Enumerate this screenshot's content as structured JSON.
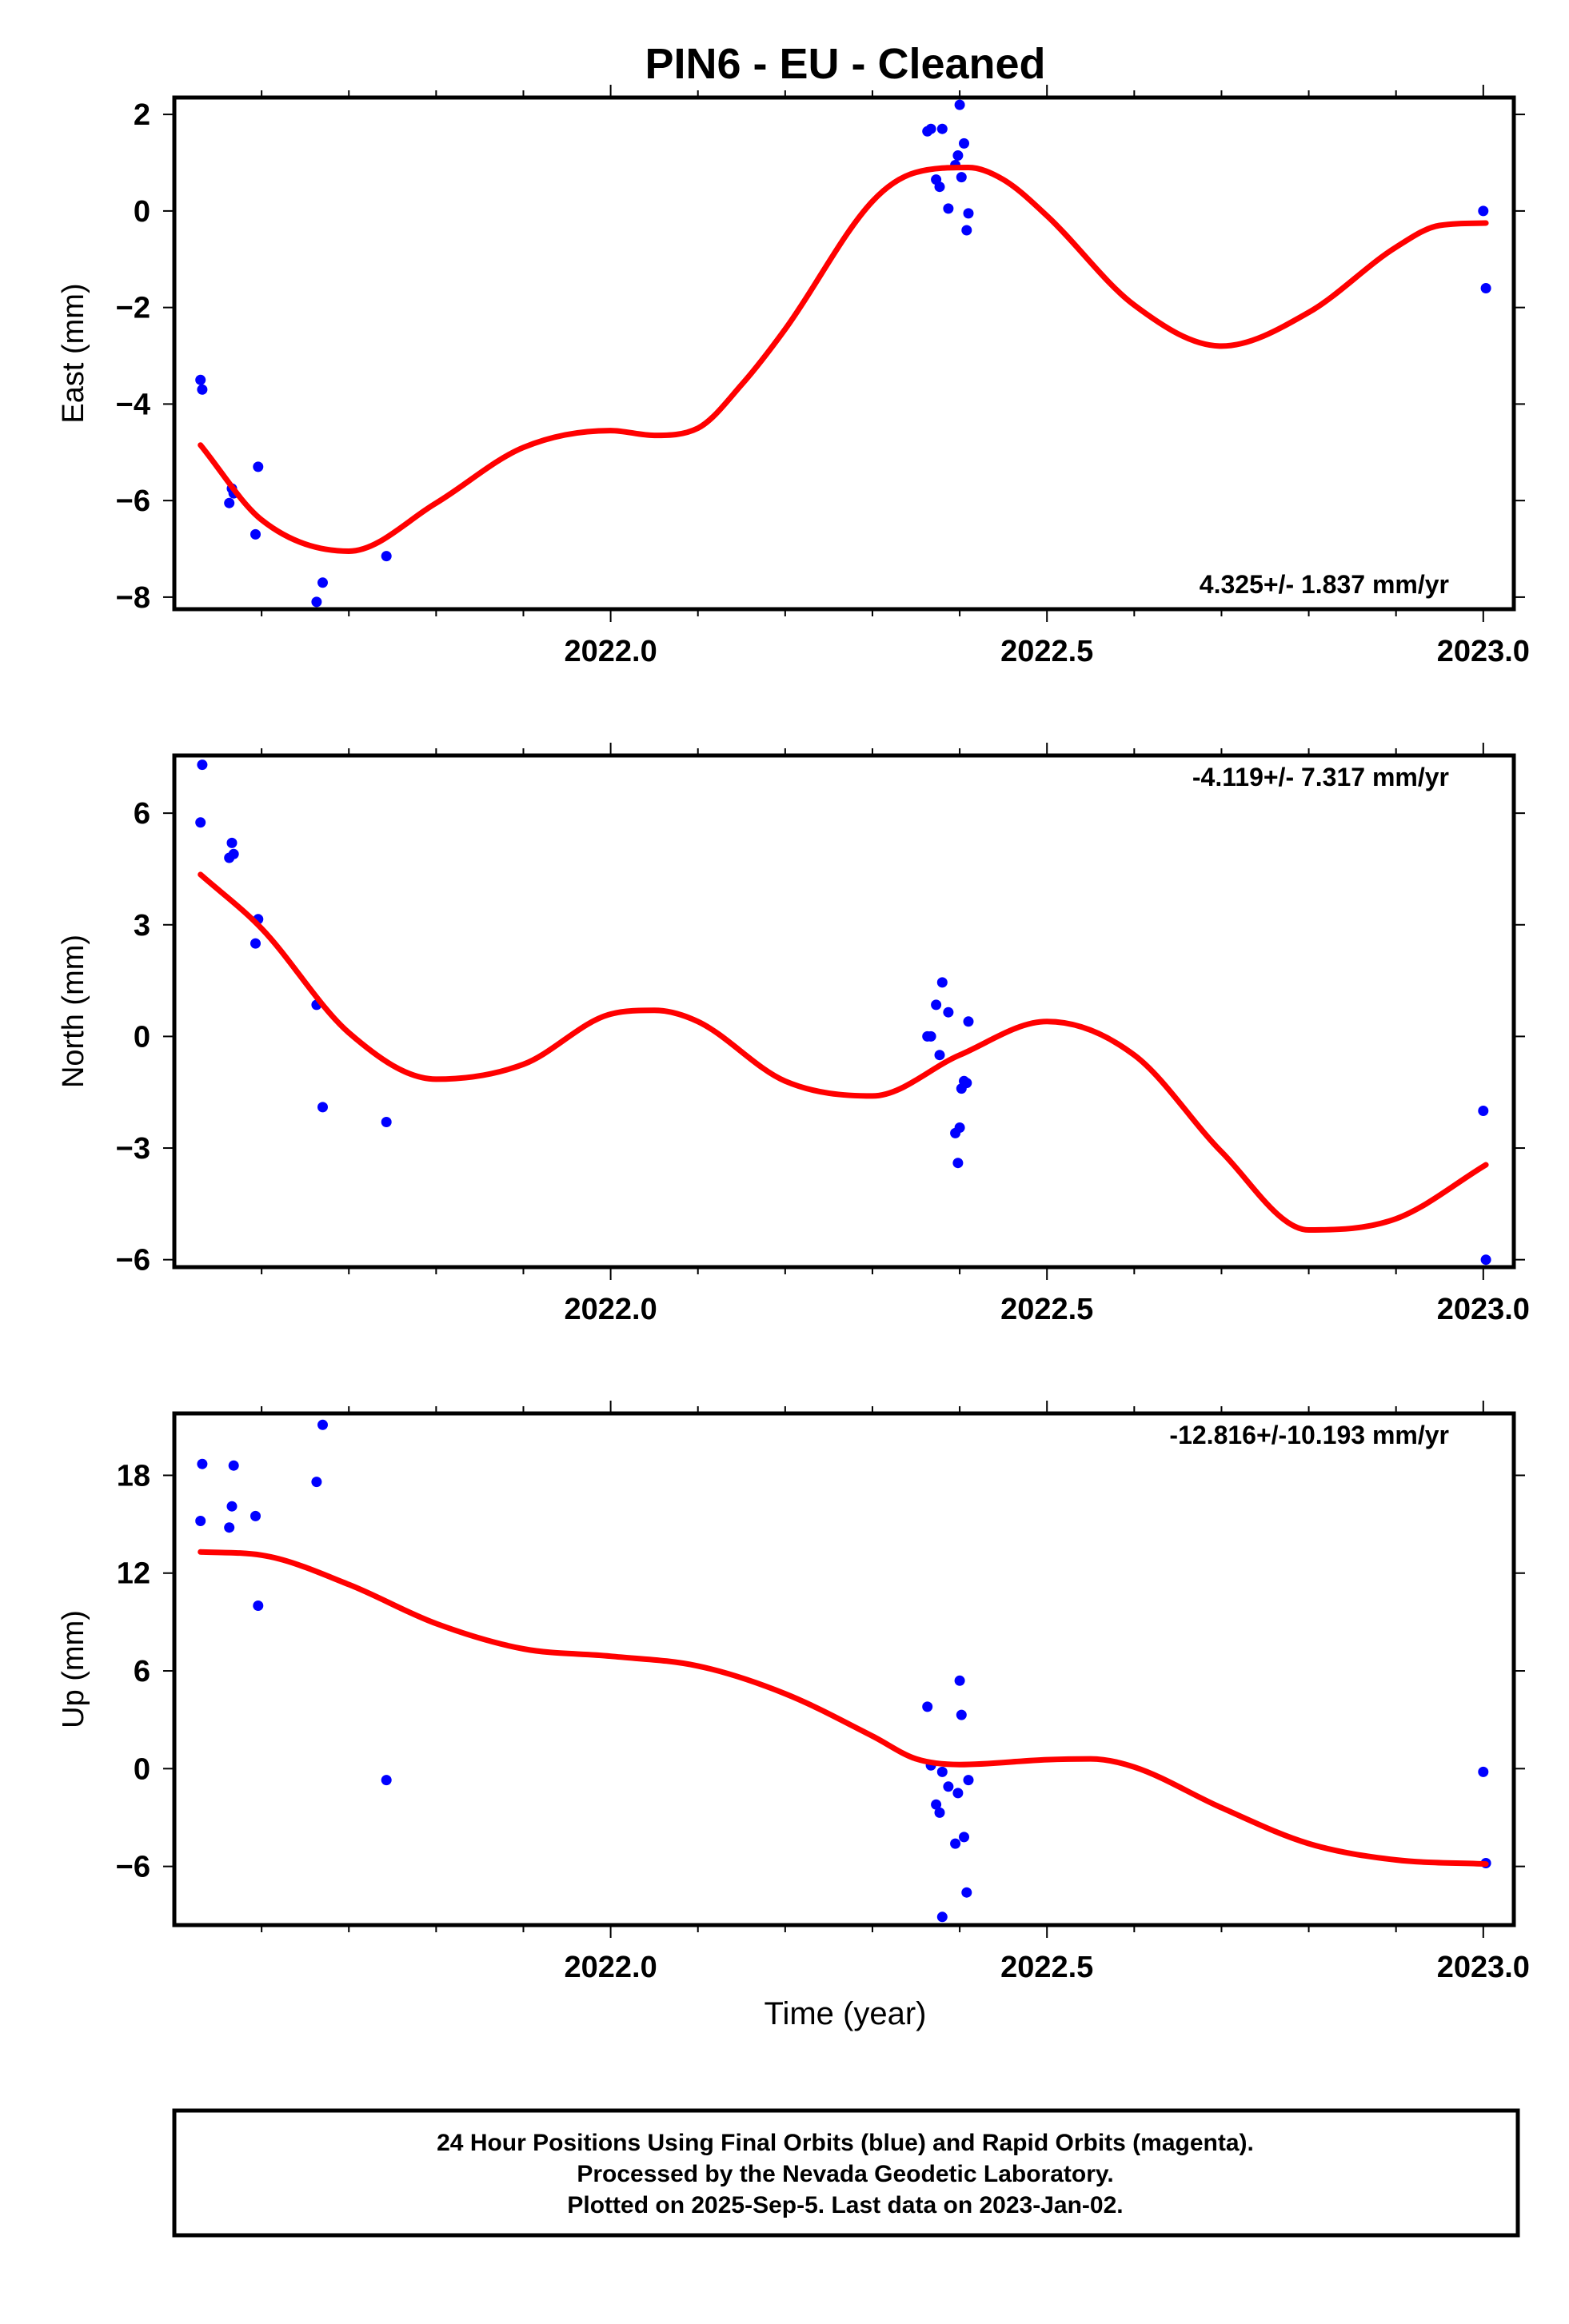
{
  "title": "PIN6  - EU - Cleaned",
  "xlabel": "Time (year)",
  "colors": {
    "final_orbits": "#0000ff",
    "model": "#ff0000",
    "axis": "#000000"
  },
  "footer": {
    "line1": "24 Hour Positions Using Final Orbits (blue) and Rapid Orbits (magenta).",
    "line2": "Processed by the Nevada Geodetic Laboratory.",
    "line3": "Plotted on 2025-Sep-5. Last data on 2023-Jan-02."
  },
  "chart_data": [
    {
      "type": "scatter",
      "ylabel": "East (mm)",
      "rate_label": "4.325+/- 1.837 mm/yr",
      "rate_position": "bottom-right",
      "xlim": [
        2021.5,
        2023.035
      ],
      "ylim": [
        -8.25,
        2.35
      ],
      "xticks": [
        2022.0,
        2022.5,
        2023.0
      ],
      "xtick_labels": [
        "2022.0",
        "2022.5",
        "2023.0"
      ],
      "yticks": [
        2,
        0,
        -2,
        -4,
        -6,
        -8
      ],
      "ytick_labels": [
        "2",
        "0",
        "−2",
        "−4",
        "−6",
        "−8"
      ],
      "points": [
        [
          2021.53,
          -3.5
        ],
        [
          2021.532,
          -3.7
        ],
        [
          2021.563,
          -6.05
        ],
        [
          2021.566,
          -5.75
        ],
        [
          2021.568,
          -5.85
        ],
        [
          2021.593,
          -6.7
        ],
        [
          2021.596,
          -5.3
        ],
        [
          2021.663,
          -8.1
        ],
        [
          2021.67,
          -7.7
        ],
        [
          2021.743,
          -7.15
        ],
        [
          2022.363,
          1.65
        ],
        [
          2022.367,
          1.7
        ],
        [
          2022.373,
          0.65
        ],
        [
          2022.377,
          0.5
        ],
        [
          2022.38,
          1.7
        ],
        [
          2022.387,
          0.05
        ],
        [
          2022.395,
          0.95
        ],
        [
          2022.398,
          1.15
        ],
        [
          2022.4,
          2.2
        ],
        [
          2022.402,
          0.7
        ],
        [
          2022.405,
          1.4
        ],
        [
          2022.408,
          -0.4
        ],
        [
          2022.41,
          -0.05
        ],
        [
          2023.0,
          0.0
        ],
        [
          2023.003,
          -1.6
        ]
      ],
      "model": {
        "x": [
          2021.53,
          2021.6,
          2021.7,
          2021.8,
          2021.9,
          2022.0,
          2022.05,
          2022.1,
          2022.15,
          2022.2,
          2022.3,
          2022.35,
          2022.41,
          2022.45,
          2022.5,
          2022.6,
          2022.7,
          2022.8,
          2022.9,
          2022.95,
          2023.003
        ],
        "y": [
          -4.85,
          -6.4,
          -7.05,
          -6.05,
          -4.9,
          -4.55,
          -4.65,
          -4.5,
          -3.6,
          -2.45,
          0.2,
          0.8,
          0.9,
          0.65,
          -0.1,
          -1.95,
          -2.8,
          -2.1,
          -0.75,
          -0.3,
          -0.25
        ]
      }
    },
    {
      "type": "scatter",
      "ylabel": "North (mm)",
      "rate_label": "-4.119+/- 7.317 mm/yr",
      "rate_position": "top-right",
      "xlim": [
        2021.5,
        2023.035
      ],
      "ylim": [
        -6.2,
        7.55
      ],
      "xticks": [
        2022.0,
        2022.5,
        2023.0
      ],
      "xtick_labels": [
        "2022.0",
        "2022.5",
        "2023.0"
      ],
      "yticks": [
        6,
        3,
        0,
        -3,
        -6
      ],
      "ytick_labels": [
        "6",
        "3",
        "0",
        "−3",
        "−6"
      ],
      "points": [
        [
          2021.53,
          5.75
        ],
        [
          2021.532,
          7.3
        ],
        [
          2021.563,
          4.8
        ],
        [
          2021.566,
          5.2
        ],
        [
          2021.568,
          4.9
        ],
        [
          2021.593,
          2.5
        ],
        [
          2021.596,
          3.15
        ],
        [
          2021.663,
          0.85
        ],
        [
          2021.67,
          -1.9
        ],
        [
          2021.743,
          -2.3
        ],
        [
          2022.363,
          0.0
        ],
        [
          2022.367,
          0.0
        ],
        [
          2022.373,
          0.85
        ],
        [
          2022.377,
          -0.5
        ],
        [
          2022.38,
          1.45
        ],
        [
          2022.387,
          0.65
        ],
        [
          2022.395,
          -2.6
        ],
        [
          2022.398,
          -3.4
        ],
        [
          2022.4,
          -2.45
        ],
        [
          2022.402,
          -1.4
        ],
        [
          2022.405,
          -1.2
        ],
        [
          2022.408,
          -1.25
        ],
        [
          2022.41,
          0.4
        ],
        [
          2023.0,
          -2.0
        ],
        [
          2023.003,
          -6.0
        ]
      ],
      "model": {
        "x": [
          2021.53,
          2021.6,
          2021.7,
          2021.8,
          2021.9,
          2022.0,
          2022.05,
          2022.1,
          2022.2,
          2022.3,
          2022.4,
          2022.5,
          2022.6,
          2022.7,
          2022.8,
          2022.9,
          2023.003
        ],
        "y": [
          4.35,
          2.9,
          0.1,
          -1.15,
          -0.75,
          0.6,
          0.7,
          0.4,
          -1.2,
          -1.6,
          -0.5,
          0.4,
          -0.5,
          -3.1,
          -5.2,
          -4.9,
          -3.45
        ]
      }
    },
    {
      "type": "scatter",
      "ylabel": "Up (mm)",
      "rate_label": "-12.816+/-10.193 mm/yr",
      "rate_position": "top-right",
      "xlim": [
        2021.5,
        2023.035
      ],
      "ylim": [
        -9.6,
        21.8
      ],
      "xticks": [
        2022.0,
        2022.5,
        2023.0
      ],
      "xtick_labels": [
        "2022.0",
        "2022.5",
        "2023.0"
      ],
      "yticks": [
        18,
        12,
        6,
        0,
        -6
      ],
      "ytick_labels": [
        "18",
        "12",
        "6",
        "0",
        "−6"
      ],
      "points": [
        [
          2021.53,
          15.2
        ],
        [
          2021.532,
          18.7
        ],
        [
          2021.563,
          14.8
        ],
        [
          2021.566,
          16.1
        ],
        [
          2021.568,
          18.6
        ],
        [
          2021.593,
          15.5
        ],
        [
          2021.596,
          10.0
        ],
        [
          2021.663,
          17.6
        ],
        [
          2021.67,
          21.1
        ],
        [
          2021.743,
          -0.7
        ],
        [
          2022.363,
          3.8
        ],
        [
          2022.367,
          0.2
        ],
        [
          2022.373,
          -2.2
        ],
        [
          2022.377,
          -2.7
        ],
        [
          2022.38,
          -0.2
        ],
        [
          2022.387,
          -1.1
        ],
        [
          2022.395,
          -4.6
        ],
        [
          2022.398,
          -1.5
        ],
        [
          2022.4,
          5.4
        ],
        [
          2022.402,
          3.3
        ],
        [
          2022.405,
          -4.2
        ],
        [
          2022.408,
          -7.6
        ],
        [
          2022.41,
          -0.7
        ],
        [
          2022.38,
          -9.1
        ],
        [
          2023.0,
          -0.2
        ],
        [
          2023.003,
          -5.8
        ]
      ],
      "model": {
        "x": [
          2021.53,
          2021.6,
          2021.7,
          2021.8,
          2021.9,
          2022.0,
          2022.1,
          2022.2,
          2022.3,
          2022.35,
          2022.4,
          2022.5,
          2022.55,
          2022.6,
          2022.7,
          2022.8,
          2022.9,
          2023.003
        ],
        "y": [
          13.3,
          13.1,
          11.3,
          8.9,
          7.35,
          6.9,
          6.3,
          4.6,
          2.0,
          0.6,
          0.25,
          0.55,
          0.6,
          0.1,
          -2.4,
          -4.6,
          -5.6,
          -5.85
        ]
      }
    }
  ]
}
